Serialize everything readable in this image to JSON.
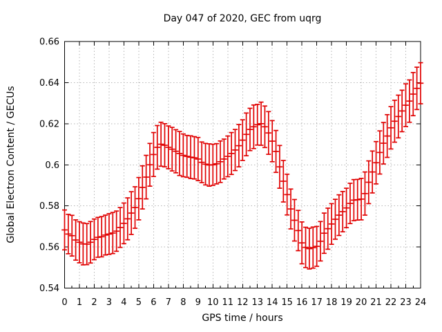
{
  "title": "Day 047 of 2020, GEC from uqrg",
  "style": {
    "data_color": "#e00000",
    "grid_color": "#b4b4b4",
    "axis_color": "#000000",
    "background": "#ffffff"
  },
  "chart_data": {
    "type": "line",
    "style": "yerrorbars",
    "title": "Day 047 of 2020, GEC from uqrg",
    "xlabel": "GPS time / hours",
    "ylabel": "Global Electron Content / GECUs",
    "xlim": [
      0,
      24
    ],
    "ylim": [
      0.54,
      0.66
    ],
    "grid": true,
    "legend": "none",
    "x_tick_labels": [
      "0",
      "1",
      "2",
      "3",
      "4",
      "5",
      "6",
      "7",
      "8",
      "9",
      "10",
      "11",
      "12",
      "13",
      "14",
      "15",
      "16",
      "17",
      "18",
      "19",
      "20",
      "21",
      "22",
      "23",
      "24"
    ],
    "x_tick_values": [
      0,
      1,
      2,
      3,
      4,
      5,
      6,
      7,
      8,
      9,
      10,
      11,
      12,
      13,
      14,
      15,
      16,
      17,
      18,
      19,
      20,
      21,
      22,
      23,
      24
    ],
    "y_tick_labels": [
      "0.54",
      "0.56",
      "0.58",
      "0.6",
      "0.62",
      "0.64",
      "0.66"
    ],
    "y_tick_values": [
      0.54,
      0.56,
      0.58,
      0.6,
      0.62,
      0.64,
      0.66
    ],
    "x": [
      0,
      0.25,
      0.5,
      0.75,
      1,
      1.25,
      1.5,
      1.75,
      2,
      2.25,
      2.5,
      2.75,
      3,
      3.25,
      3.5,
      3.75,
      4,
      4.25,
      4.5,
      4.75,
      5,
      5.25,
      5.5,
      5.75,
      6,
      6.25,
      6.5,
      6.75,
      7,
      7.25,
      7.5,
      7.75,
      8,
      8.25,
      8.5,
      8.75,
      9,
      9.25,
      9.5,
      9.75,
      10,
      10.25,
      10.5,
      10.75,
      11,
      11.25,
      11.5,
      11.75,
      12,
      12.25,
      12.5,
      12.75,
      13,
      13.25,
      13.5,
      13.75,
      14,
      14.25,
      14.5,
      14.75,
      15,
      15.25,
      15.5,
      15.75,
      16,
      16.25,
      16.5,
      16.75,
      17,
      17.25,
      17.5,
      17.75,
      18,
      18.25,
      18.5,
      18.75,
      19,
      19.25,
      19.5,
      19.75,
      20,
      20.25,
      20.5,
      20.75,
      21,
      21.25,
      21.5,
      21.75,
      22,
      22.25,
      22.5,
      22.75,
      23,
      23.25,
      23.5,
      23.75,
      24
    ],
    "values": [
      0.5683,
      0.5663,
      0.5655,
      0.5634,
      0.5623,
      0.5615,
      0.5614,
      0.5623,
      0.5637,
      0.5647,
      0.565,
      0.5658,
      0.5663,
      0.5668,
      0.5677,
      0.5695,
      0.5715,
      0.5737,
      0.5765,
      0.5792,
      0.5835,
      0.589,
      0.594,
      0.6,
      0.605,
      0.6085,
      0.61,
      0.6095,
      0.6085,
      0.6076,
      0.6066,
      0.6055,
      0.6046,
      0.6041,
      0.6037,
      0.6034,
      0.6028,
      0.6012,
      0.6003,
      0.5999,
      0.6,
      0.6005,
      0.6015,
      0.6028,
      0.6041,
      0.6055,
      0.6072,
      0.6093,
      0.612,
      0.6148,
      0.6172,
      0.6185,
      0.6195,
      0.62,
      0.6185,
      0.6155,
      0.6115,
      0.6065,
      0.599,
      0.592,
      0.5855,
      0.5785,
      0.573,
      0.568,
      0.562,
      0.5598,
      0.5592,
      0.5597,
      0.5603,
      0.5628,
      0.5667,
      0.5689,
      0.5712,
      0.5735,
      0.5755,
      0.5772,
      0.579,
      0.5812,
      0.5828,
      0.583,
      0.5833,
      0.586,
      0.5915,
      0.5965,
      0.601,
      0.606,
      0.6105,
      0.614,
      0.618,
      0.6212,
      0.6235,
      0.6262,
      0.629,
      0.631,
      0.6344,
      0.6372,
      0.6397
    ],
    "errors": [
      0.0097,
      0.0096,
      0.0099,
      0.0098,
      0.01,
      0.0102,
      0.01,
      0.0101,
      0.0099,
      0.0097,
      0.0098,
      0.0097,
      0.0099,
      0.01,
      0.0098,
      0.0097,
      0.0099,
      0.0102,
      0.0104,
      0.0101,
      0.0103,
      0.0105,
      0.0106,
      0.0104,
      0.0107,
      0.0106,
      0.0107,
      0.0105,
      0.0104,
      0.0106,
      0.0105,
      0.0107,
      0.0104,
      0.0102,
      0.0104,
      0.0103,
      0.0105,
      0.0099,
      0.0101,
      0.0103,
      0.01,
      0.0098,
      0.0101,
      0.0097,
      0.0099,
      0.0102,
      0.01,
      0.0103,
      0.0099,
      0.0104,
      0.0103,
      0.0106,
      0.0099,
      0.0105,
      0.0101,
      0.0104,
      0.01,
      0.0102,
      0.0104,
      0.0101,
      0.0099,
      0.0097,
      0.0101,
      0.0098,
      0.0102,
      0.0098,
      0.0099,
      0.01,
      0.0097,
      0.0096,
      0.0098,
      0.01,
      0.0099,
      0.0097,
      0.0099,
      0.0098,
      0.0096,
      0.0098,
      0.01,
      0.0099,
      0.0101,
      0.0105,
      0.0104,
      0.0102,
      0.0103,
      0.0105,
      0.0101,
      0.0104,
      0.0103,
      0.0102,
      0.0104,
      0.0101,
      0.0104,
      0.0103,
      0.0105,
      0.0103,
      0.01
    ]
  }
}
